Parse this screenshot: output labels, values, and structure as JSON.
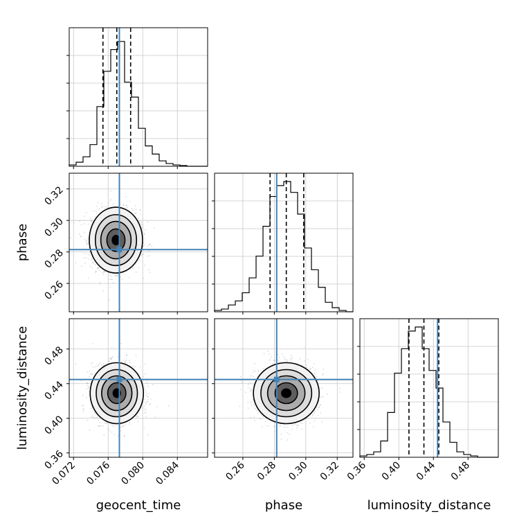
{
  "chart_data": {
    "type": "corner",
    "parameters": [
      "geocent_time",
      "phase",
      "luminosity_distance"
    ],
    "truths": {
      "geocent_time": 0.0773,
      "phase": 0.2815,
      "luminosity_distance": 0.4448
    },
    "colors": {
      "truth": "#4682b4",
      "line": "#000000",
      "grid": "#c8c8c8",
      "points": "#999999"
    },
    "grid": true,
    "axes": {
      "geocent_time": {
        "range": [
          0.0715,
          0.0875
        ],
        "ticks": [
          0.072,
          0.076,
          0.08,
          0.084
        ],
        "tick_labels": [
          "0.072",
          "0.076",
          "0.080",
          "0.084"
        ]
      },
      "phase": {
        "range": [
          0.242,
          0.33
        ],
        "ticks": [
          0.26,
          0.28,
          0.3,
          0.32
        ],
        "tick_labels": [
          "0.26",
          "0.28",
          "0.30",
          "0.32"
        ]
      },
      "luminosity_distance": {
        "range": [
          0.355,
          0.515
        ],
        "ticks": [
          0.36,
          0.4,
          0.44,
          0.48
        ],
        "tick_labels": [
          "0.36",
          "0.40",
          "0.44",
          "0.48"
        ]
      }
    },
    "histograms": {
      "geocent_time": {
        "edges": [
          0.0715,
          0.0723,
          0.0731,
          0.0739,
          0.0747,
          0.0755,
          0.0763,
          0.0771,
          0.0779,
          0.0787,
          0.0795,
          0.0803,
          0.0811,
          0.0819,
          0.0827,
          0.0835,
          0.0843,
          0.0851,
          0.0859,
          0.0867,
          0.0875
        ],
        "counts": [
          0.01,
          0.03,
          0.07,
          0.16,
          0.44,
          0.7,
          0.86,
          0.92,
          0.62,
          0.51,
          0.28,
          0.15,
          0.09,
          0.04,
          0.02,
          0.01,
          0.005,
          0,
          0,
          0
        ],
        "quantiles": [
          0.0754,
          0.077,
          0.0786
        ]
      },
      "phase": {
        "edges": [
          0.242,
          0.2464,
          0.2508,
          0.2552,
          0.2596,
          0.264,
          0.2684,
          0.2728,
          0.2772,
          0.2816,
          0.286,
          0.2904,
          0.2948,
          0.2992,
          0.3036,
          0.308,
          0.3124,
          0.3168,
          0.3212,
          0.3256,
          0.33
        ],
        "counts": [
          0.01,
          0.02,
          0.05,
          0.08,
          0.14,
          0.25,
          0.41,
          0.63,
          0.85,
          0.93,
          0.96,
          0.88,
          0.72,
          0.47,
          0.31,
          0.18,
          0.07,
          0.03,
          0.01,
          0
        ],
        "quantiles": [
          0.2773,
          0.2876,
          0.2987
        ]
      },
      "luminosity_distance": {
        "edges": [
          0.355,
          0.363,
          0.371,
          0.379,
          0.387,
          0.395,
          0.403,
          0.411,
          0.419,
          0.427,
          0.435,
          0.443,
          0.451,
          0.459,
          0.467,
          0.475,
          0.483,
          0.491,
          0.499,
          0.507,
          0.515
        ],
        "counts": [
          0.01,
          0.02,
          0.04,
          0.12,
          0.33,
          0.62,
          0.8,
          0.93,
          0.96,
          0.8,
          0.64,
          0.51,
          0.26,
          0.11,
          0.04,
          0.02,
          0.01,
          0,
          0,
          0
        ],
        "quantiles": [
          0.4117,
          0.429,
          0.4462
        ]
      }
    },
    "scatter_2d": [
      {
        "x": "geocent_time",
        "y": "phase",
        "center": [
          0.0769,
          0.2875
        ],
        "sd": [
          0.0014,
          0.0095
        ]
      },
      {
        "x": "geocent_time",
        "y": "luminosity_distance",
        "center": [
          0.077,
          0.429
        ],
        "sd": [
          0.0014,
          0.016
        ]
      },
      {
        "x": "phase",
        "y": "luminosity_distance",
        "center": [
          0.2876,
          0.429
        ],
        "sd": [
          0.0095,
          0.016
        ]
      }
    ]
  }
}
